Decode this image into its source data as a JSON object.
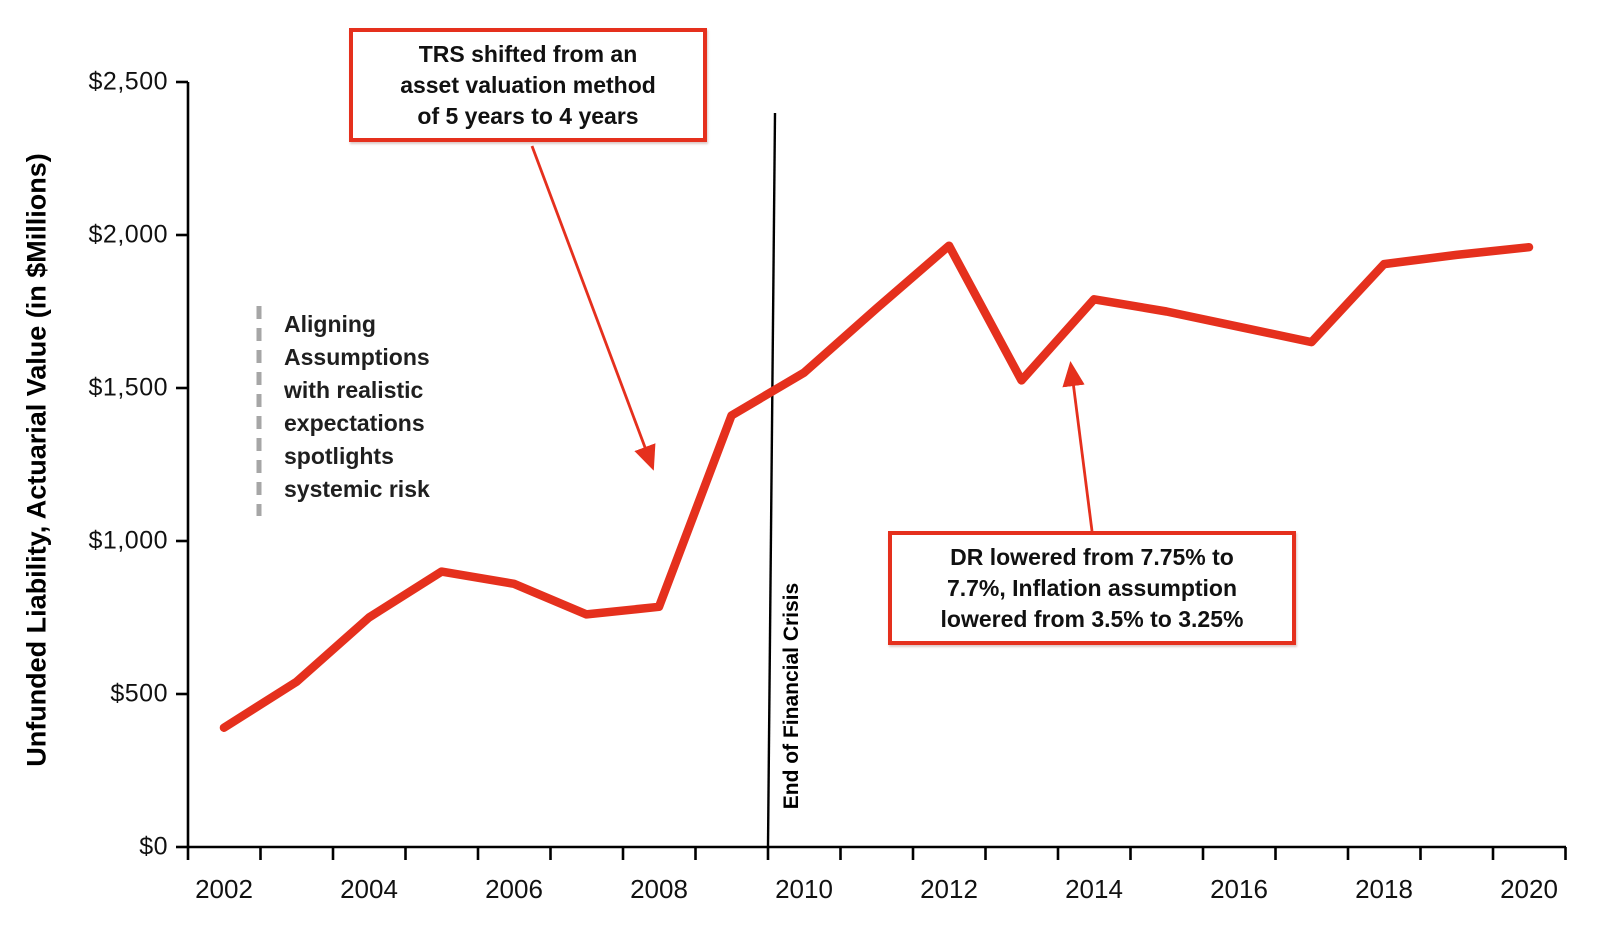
{
  "chart_data": {
    "type": "line",
    "title": "",
    "ylabel": "Unfunded Liability, Actuarial Value (in $Millions)",
    "xlabel": "",
    "x": [
      2002,
      2003,
      2004,
      2005,
      2006,
      2007,
      2008,
      2009,
      2010,
      2011,
      2012,
      2013,
      2014,
      2015,
      2016,
      2017,
      2018,
      2019,
      2020
    ],
    "values": [
      390,
      540,
      750,
      900,
      860,
      760,
      785,
      1410,
      1550,
      1760,
      1965,
      1525,
      1790,
      1750,
      1700,
      1650,
      1905,
      1935,
      1960
    ],
    "series_name": "Unfunded Liability (Actuarial Value, $M)",
    "ylim": [
      0,
      2500
    ],
    "y_ticks": [
      {
        "value": 0,
        "label": "$0"
      },
      {
        "value": 500,
        "label": "$500"
      },
      {
        "value": 1000,
        "label": "$1,000"
      },
      {
        "value": 1500,
        "label": "$1,500"
      },
      {
        "value": 2000,
        "label": "$2,000"
      },
      {
        "value": 2500,
        "label": "$2,500"
      }
    ],
    "x_tick_label_years": [
      2002,
      2004,
      2006,
      2008,
      2010,
      2012,
      2014,
      2016,
      2018,
      2020
    ],
    "grid": false,
    "legend": "none",
    "line_color": "#e5301d"
  },
  "annotations": {
    "trs_box": {
      "line1": "TRS shifted from an",
      "line2": "asset valuation method",
      "line3": "of 5 years to 4 years"
    },
    "dr_box": {
      "line1": "DR lowered from 7.75% to",
      "line2": "7.7%, Inflation assumption",
      "line3": "lowered from 3.5% to 3.25%"
    },
    "aligning_note": {
      "line1": "Aligning",
      "line2": "Assumptions",
      "line3": "with realistic",
      "line4": "expectations",
      "line5": "spotlights",
      "line6": "systemic risk"
    },
    "financial_crisis_label": "End of Financial Crisis"
  },
  "colors": {
    "accent_red": "#e5301d",
    "axis_black": "#000000",
    "dashed_gray": "#a6a6a6"
  }
}
